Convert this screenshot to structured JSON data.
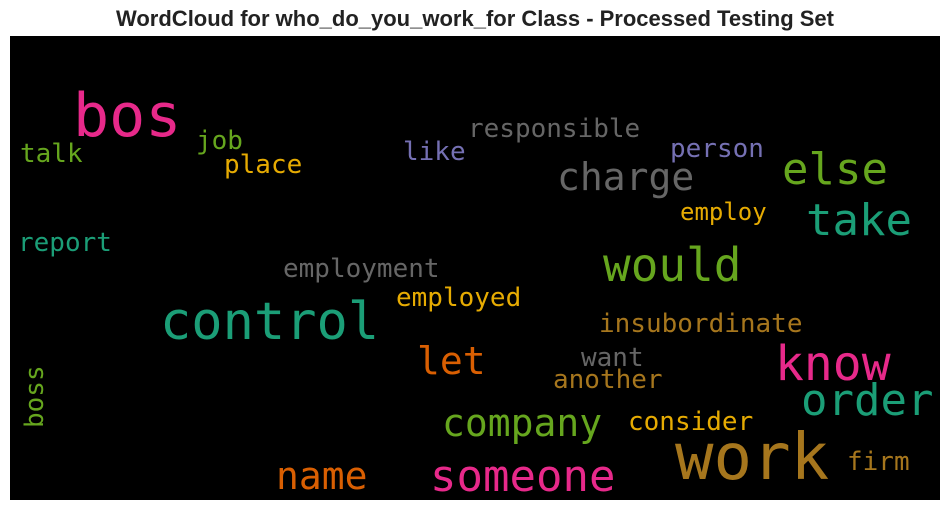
{
  "chart_data": {
    "type": "wordcloud",
    "title": "WordCloud for who_do_you_work_for Class - Processed Testing Set",
    "background": "#000000",
    "words": [
      {
        "text": "bos",
        "color": "#e7298a"
      },
      {
        "text": "job",
        "color": "#66a61e"
      },
      {
        "text": "talk",
        "color": "#66a61e"
      },
      {
        "text": "place",
        "color": "#e6ab02"
      },
      {
        "text": "responsible",
        "color": "#666666"
      },
      {
        "text": "like",
        "color": "#7570b3"
      },
      {
        "text": "person",
        "color": "#7570b3"
      },
      {
        "text": "charge",
        "color": "#666666"
      },
      {
        "text": "else",
        "color": "#66a61e"
      },
      {
        "text": "take",
        "color": "#1b9e77"
      },
      {
        "text": "employ",
        "color": "#e6ab02"
      },
      {
        "text": "report",
        "color": "#1b9e77"
      },
      {
        "text": "would",
        "color": "#66a61e"
      },
      {
        "text": "employment",
        "color": "#666666"
      },
      {
        "text": "employed",
        "color": "#e6ab02"
      },
      {
        "text": "control",
        "color": "#1b9e77"
      },
      {
        "text": "insubordinate",
        "color": "#a6761d"
      },
      {
        "text": "let",
        "color": "#d95f02"
      },
      {
        "text": "want",
        "color": "#666666"
      },
      {
        "text": "know",
        "color": "#e7298a"
      },
      {
        "text": "another",
        "color": "#a6761d"
      },
      {
        "text": "boss",
        "color": "#66a61e"
      },
      {
        "text": "order",
        "color": "#1b9e77"
      },
      {
        "text": "company",
        "color": "#66a61e"
      },
      {
        "text": "consider",
        "color": "#e6ab02"
      },
      {
        "text": "work",
        "color": "#a6761d"
      },
      {
        "text": "firm",
        "color": "#a6761d"
      },
      {
        "text": "name",
        "color": "#d95f02"
      },
      {
        "text": "someone",
        "color": "#e7298a"
      }
    ]
  }
}
